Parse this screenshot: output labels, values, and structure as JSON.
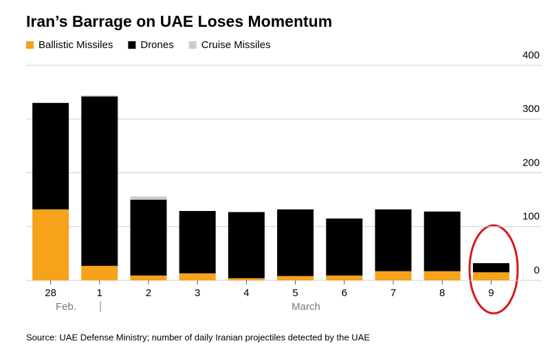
{
  "chart_data": {
    "type": "stacked_bar",
    "title": "Iran’s Barrage on UAE Loses Momentum",
    "categories": [
      "28",
      "1",
      "2",
      "3",
      "4",
      "5",
      "6",
      "7",
      "8",
      "9"
    ],
    "category_groups": [
      "Feb.",
      "March"
    ],
    "series": [
      {
        "name": "Ballistic Missiles",
        "color": "#f7a21b",
        "values": [
          132,
          27,
          9,
          13,
          4,
          8,
          9,
          17,
          17,
          15
        ]
      },
      {
        "name": "Drones",
        "color": "#000000",
        "values": [
          198,
          315,
          141,
          116,
          123,
          124,
          106,
          115,
          111,
          17
        ]
      },
      {
        "name": "Cruise Missiles",
        "color": "#cccccc",
        "values": [
          0,
          2,
          6,
          0,
          0,
          0,
          0,
          0,
          0,
          0
        ]
      }
    ],
    "ylim": [
      0,
      400
    ],
    "yticks": [
      0,
      100,
      200,
      300,
      400
    ],
    "grid": true,
    "y_axis_side": "right",
    "source": "Source: UAE Defense Ministry; number of daily Iranian projectiles detected by the UAE"
  }
}
